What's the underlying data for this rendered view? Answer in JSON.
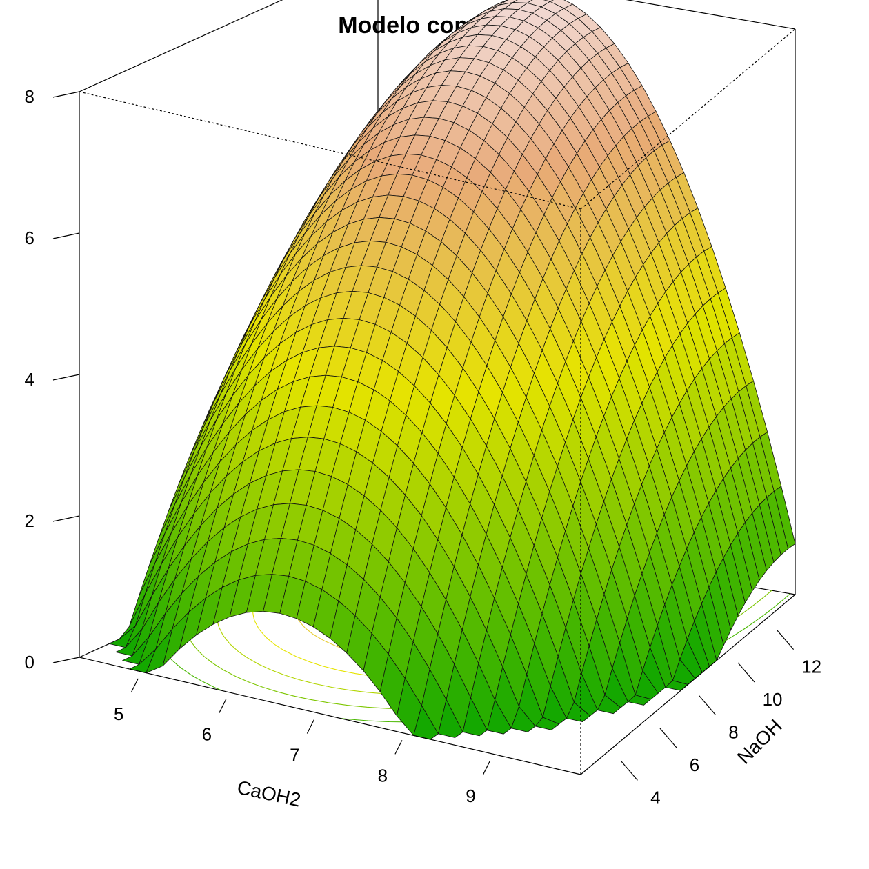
{
  "chart_data": {
    "type": "surface3d",
    "title": "Modelo completo",
    "xlabel": "CaOH2",
    "ylabel": "NaOH",
    "zlabel": "",
    "xlim": [
      4.3,
      10
    ],
    "ylim": [
      2.5,
      13.5
    ],
    "zlim": [
      0,
      8
    ],
    "x_ticks": [
      5,
      6,
      7,
      8,
      9
    ],
    "y_ticks": [
      4,
      6,
      8,
      10,
      12
    ],
    "z_ticks": [
      0,
      2,
      4,
      6,
      8
    ],
    "grid_n": 30,
    "surface_model": "z = 7.9 - 0.62*(x - 6.6)^2 - 0.06*(y - 13)^2",
    "surface_params": {
      "zmax": 7.9,
      "x_center": 6.6,
      "x_curv": 0.62,
      "y_center": 13,
      "y_curv": 0.06
    },
    "contour_levels": [
      1,
      2,
      3,
      4,
      5,
      6,
      7
    ],
    "palette": {
      "low": "#14a800",
      "mid": "#e6e400",
      "high": "#f2dcd9"
    }
  }
}
